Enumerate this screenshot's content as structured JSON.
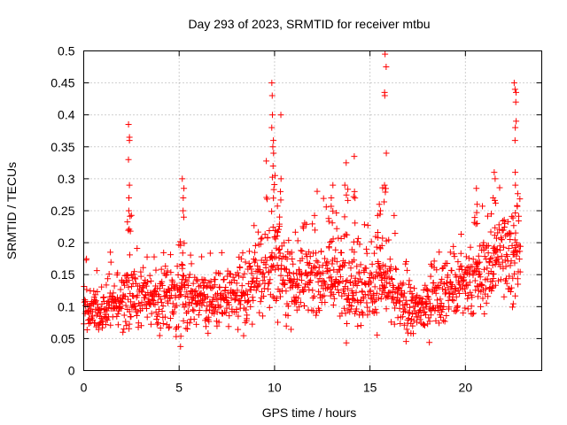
{
  "chart_data": {
    "type": "scatter",
    "title": "Day 293 of 2023, SRMTID for receiver mtbu",
    "xlabel": "GPS time / hours",
    "ylabel": "SRMTID / TECUs",
    "xlim": [
      0,
      24
    ],
    "ylim": [
      0,
      0.5
    ],
    "xticks": [
      0,
      5,
      10,
      15,
      20
    ],
    "yticks": [
      0,
      0.05,
      0.1,
      0.15,
      0.2,
      0.25,
      0.3,
      0.35,
      0.4,
      0.45,
      0.5
    ],
    "xtick_labels": [
      "0",
      "5",
      "10",
      "15",
      "20"
    ],
    "ytick_labels": [
      "0",
      "0.05",
      "0.1",
      "0.15",
      "0.2",
      "0.25",
      "0.3",
      "0.35",
      "0.4",
      "0.45",
      "0.5"
    ],
    "grid": true,
    "marker": "+",
    "marker_color": "#ff0000",
    "series": [
      {
        "name": "SRMTID",
        "profile_hours": [
          0,
          1,
          2,
          3,
          4,
          5,
          6,
          7,
          8,
          9,
          10,
          11,
          12,
          13,
          14,
          15,
          16,
          17,
          18,
          19,
          20,
          21,
          22,
          22.9
        ],
        "typical_values": [
          0.1,
          0.09,
          0.11,
          0.12,
          0.11,
          0.12,
          0.12,
          0.11,
          0.11,
          0.14,
          0.17,
          0.14,
          0.15,
          0.15,
          0.13,
          0.13,
          0.13,
          0.09,
          0.1,
          0.13,
          0.13,
          0.15,
          0.19,
          0.18
        ],
        "spread": [
          0.03,
          0.03,
          0.04,
          0.04,
          0.04,
          0.05,
          0.04,
          0.04,
          0.04,
          0.05,
          0.06,
          0.05,
          0.05,
          0.05,
          0.05,
          0.05,
          0.05,
          0.03,
          0.03,
          0.04,
          0.04,
          0.05,
          0.06,
          0.07
        ],
        "spikes": [
          {
            "x": 2.4,
            "y": [
              0.385,
              0.365,
              0.36,
              0.33,
              0.29,
              0.27,
              0.25
            ]
          },
          {
            "x": 5.2,
            "y": [
              0.3,
              0.285,
              0.27,
              0.25,
              0.24
            ]
          },
          {
            "x": 9.9,
            "y": [
              0.45,
              0.43,
              0.4,
              0.38,
              0.36,
              0.35,
              0.34,
              0.32
            ]
          },
          {
            "x": 10.3,
            "y": [
              0.4,
              0.3,
              0.28
            ]
          },
          {
            "x": 13.0,
            "y": [
              0.29,
              0.27
            ]
          },
          {
            "x": 13.7,
            "y": [
              0.325,
              0.29
            ]
          },
          {
            "x": 14.2,
            "y": [
              0.335,
              0.28
            ]
          },
          {
            "x": 15.5,
            "y": [
              0.26,
              0.25
            ]
          },
          {
            "x": 15.8,
            "y": [
              0.495,
              0.475,
              0.435,
              0.43,
              0.34,
              0.29
            ]
          },
          {
            "x": 20.6,
            "y": [
              0.285,
              0.26
            ]
          },
          {
            "x": 21.5,
            "y": [
              0.31,
              0.3,
              0.27
            ]
          },
          {
            "x": 22.6,
            "y": [
              0.45,
              0.44,
              0.435,
              0.42,
              0.39,
              0.38,
              0.36,
              0.31,
              0.29
            ]
          }
        ]
      }
    ]
  }
}
